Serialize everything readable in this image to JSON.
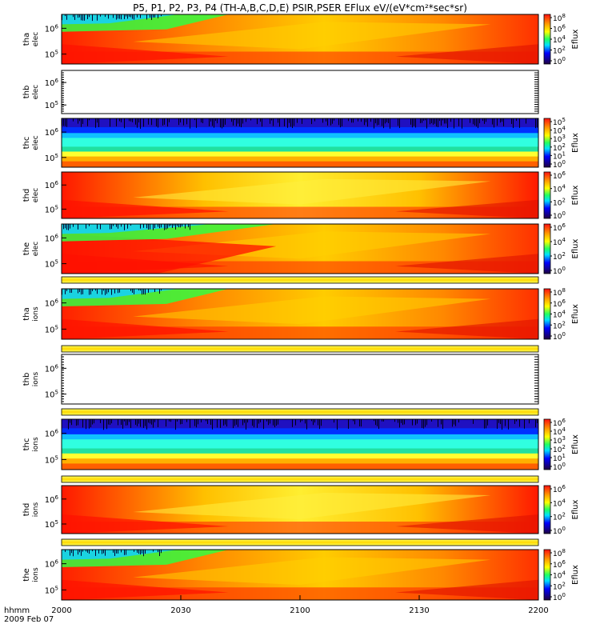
{
  "title": "P5, P1, P2, P3, P4 (TH-A,B,C,D,E) PSIR,PSER EFlux eV/(eV*cm²*sec*sr)",
  "chart_data": {
    "type": "heatmap",
    "title": "P5, P1, P2, P3, P4 (TH-A,B,C,D,E) PSIR,PSER EFlux eV/(eV*cm²*sec*sr)",
    "x_axis": {
      "ticks": [
        "2000",
        "2030",
        "2100",
        "2130",
        "2200"
      ],
      "label_line1": "hhmm",
      "label_line2": "2009 Feb 07"
    },
    "colorbar_label": "Eflux",
    "panels": [
      {
        "name": "tha-elec",
        "ylabel": [
          "tha",
          "elec"
        ],
        "empty": false,
        "pattern": "a",
        "yticks": [
          {
            "base": "10",
            "exp": "6"
          },
          {
            "base": "10",
            "exp": "5"
          }
        ],
        "cbar_ticks": [
          {
            "base": "10",
            "exp": "8"
          },
          {
            "base": "10",
            "exp": "6"
          },
          {
            "base": "10",
            "exp": "4"
          },
          {
            "base": "10",
            "exp": "2"
          },
          {
            "base": "10",
            "exp": "0"
          }
        ]
      },
      {
        "name": "thb-elec",
        "ylabel": [
          "thb",
          "elec"
        ],
        "empty": true,
        "yticks": [
          {
            "base": "10",
            "exp": "6"
          },
          {
            "base": "10",
            "exp": "5"
          }
        ],
        "cbar_ticks": []
      },
      {
        "name": "thc-elec",
        "ylabel": [
          "thc",
          "elec"
        ],
        "empty": false,
        "pattern": "c",
        "yticks": [
          {
            "base": "10",
            "exp": "6"
          },
          {
            "base": "10",
            "exp": "5"
          }
        ],
        "cbar_ticks": [
          {
            "base": "10",
            "exp": "5"
          },
          {
            "base": "10",
            "exp": "4"
          },
          {
            "base": "10",
            "exp": "3"
          },
          {
            "base": "10",
            "exp": "2"
          },
          {
            "base": "10",
            "exp": "1"
          },
          {
            "base": "10",
            "exp": "0"
          }
        ]
      },
      {
        "name": "thd-elec",
        "ylabel": [
          "thd",
          "elec"
        ],
        "empty": false,
        "pattern": "d",
        "yticks": [
          {
            "base": "10",
            "exp": "6"
          },
          {
            "base": "10",
            "exp": "5"
          }
        ],
        "cbar_ticks": [
          {
            "base": "10",
            "exp": "6"
          },
          {
            "base": "10",
            "exp": "4"
          },
          {
            "base": "10",
            "exp": "2"
          },
          {
            "base": "10",
            "exp": "0"
          }
        ]
      },
      {
        "name": "the-elec",
        "ylabel": [
          "the",
          "elec"
        ],
        "empty": false,
        "pattern": "e",
        "yticks": [
          {
            "base": "10",
            "exp": "6"
          },
          {
            "base": "10",
            "exp": "5"
          }
        ],
        "cbar_ticks": [
          {
            "base": "10",
            "exp": "6"
          },
          {
            "base": "10",
            "exp": "4"
          },
          {
            "base": "10",
            "exp": "2"
          },
          {
            "base": "10",
            "exp": "0"
          }
        ]
      },
      {
        "name": "tha-ions",
        "ylabel": [
          "tha",
          "ions"
        ],
        "empty": false,
        "pattern": "a",
        "yticks": [
          {
            "base": "10",
            "exp": "6"
          },
          {
            "base": "10",
            "exp": "5"
          }
        ],
        "cbar_ticks": [
          {
            "base": "10",
            "exp": "8"
          },
          {
            "base": "10",
            "exp": "6"
          },
          {
            "base": "10",
            "exp": "4"
          },
          {
            "base": "10",
            "exp": "2"
          },
          {
            "base": "10",
            "exp": "0"
          }
        ]
      },
      {
        "name": "thb-ions",
        "ylabel": [
          "thb",
          "ions"
        ],
        "empty": true,
        "yticks": [
          {
            "base": "10",
            "exp": "6"
          },
          {
            "base": "10",
            "exp": "5"
          }
        ],
        "cbar_ticks": []
      },
      {
        "name": "thc-ions",
        "ylabel": [
          "thc",
          "ions"
        ],
        "empty": false,
        "pattern": "c",
        "yticks": [
          {
            "base": "10",
            "exp": "6"
          },
          {
            "base": "10",
            "exp": "5"
          }
        ],
        "cbar_ticks": [
          {
            "base": "10",
            "exp": "6"
          },
          {
            "base": "10",
            "exp": "4"
          },
          {
            "base": "10",
            "exp": "3"
          },
          {
            "base": "10",
            "exp": "2"
          },
          {
            "base": "10",
            "exp": "1"
          },
          {
            "base": "10",
            "exp": "0"
          }
        ]
      },
      {
        "name": "thd-ions",
        "ylabel": [
          "thd",
          "ions"
        ],
        "empty": false,
        "pattern": "d",
        "yticks": [
          {
            "base": "10",
            "exp": "6"
          },
          {
            "base": "10",
            "exp": "5"
          }
        ],
        "cbar_ticks": [
          {
            "base": "10",
            "exp": "6"
          },
          {
            "base": "10",
            "exp": "4"
          },
          {
            "base": "10",
            "exp": "2"
          },
          {
            "base": "10",
            "exp": "0"
          }
        ]
      },
      {
        "name": "the-ions",
        "ylabel": [
          "the",
          "ions"
        ],
        "empty": false,
        "pattern": "a",
        "yticks": [
          {
            "base": "10",
            "exp": "6"
          },
          {
            "base": "10",
            "exp": "5"
          }
        ],
        "cbar_ticks": [
          {
            "base": "10",
            "exp": "8"
          },
          {
            "base": "10",
            "exp": "6"
          },
          {
            "base": "10",
            "exp": "4"
          },
          {
            "base": "10",
            "exp": "2"
          },
          {
            "base": "10",
            "exp": "0"
          }
        ]
      }
    ]
  }
}
